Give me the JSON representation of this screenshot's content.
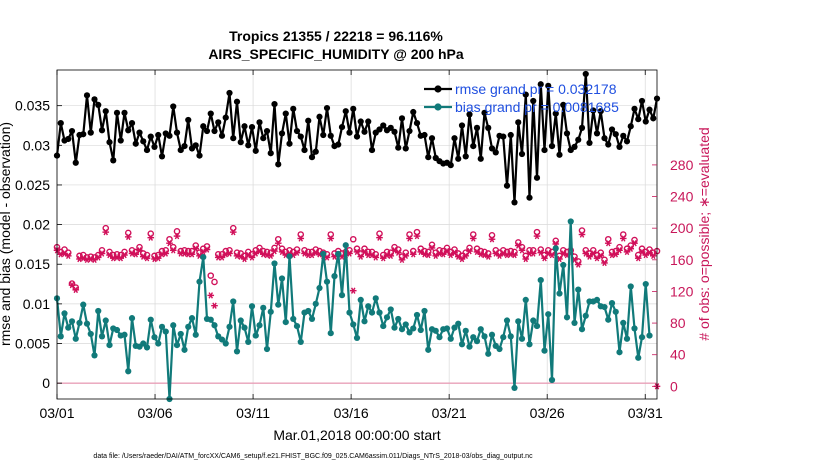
{
  "chart_data": {
    "type": "line",
    "title_line1": "Tropics 21355 / 22218 = 96.116%",
    "title_line2": "AIRS_SPECIFIC_HUMIDITY @ 200 hPa",
    "xlabel": "Mar.01,2018 00:00:00 start",
    "ylabel_left": "rmse and bias (model - observation)",
    "ylabel_right": "# of obs: o=possible; ∗=evaluated",
    "footer": "data file: /Users/raeder/DAI/ATM_forcXX/CAM6_setup/f.e21.FHIST_BGC.f09_025.CAM6assim.011/Diags_NTrS_2018-03/obs_diag_output.nc",
    "x_ticks": [
      {
        "label": "03/01",
        "day": 1
      },
      {
        "label": "03/06",
        "day": 6
      },
      {
        "label": "03/11",
        "day": 11
      },
      {
        "label": "03/16",
        "day": 16
      },
      {
        "label": "03/21",
        "day": 21
      },
      {
        "label": "03/26",
        "day": 26
      },
      {
        "label": "03/31",
        "day": 31
      }
    ],
    "xlim": [
      1,
      31.6
    ],
    "ylim_left": [
      -0.002,
      0.0395
    ],
    "ylim_right": [
      -16,
      400
    ],
    "y_ticks_left": [
      "0",
      "0.005",
      "0.01",
      "0.015",
      "0.02",
      "0.025",
      "0.03",
      "0.035"
    ],
    "y_ticks_left_values": [
      0,
      0.005,
      0.01,
      0.015,
      0.02,
      0.025,
      0.03,
      0.035
    ],
    "y_ticks_right": [
      "0",
      "40",
      "80",
      "120",
      "160",
      "200",
      "240",
      "280"
    ],
    "y_ticks_right_values": [
      0,
      40,
      80,
      120,
      160,
      200,
      240,
      280
    ],
    "legend": [
      {
        "name": "rmse",
        "label": "rmse grand pr = 0.032178"
      },
      {
        "name": "bias",
        "label": "bias grand pr = 0.0081685"
      }
    ],
    "colors": {
      "rmse": "#000000",
      "bias": "#117a7a",
      "obs": "#d1105a",
      "zero_line": "#e8a0b8",
      "grid": "#d9d9d9"
    },
    "series": [
      {
        "name": "rmse",
        "values": [
          0.0287,
          0.0328,
          0.0306,
          0.0308,
          0.0318,
          0.0278,
          0.0313,
          0.0314,
          0.0363,
          0.0316,
          0.0358,
          0.0351,
          0.0319,
          0.0343,
          0.0304,
          0.0281,
          0.0341,
          0.0306,
          0.0341,
          0.0319,
          0.0328,
          0.0302,
          0.0316,
          0.0305,
          0.0294,
          0.0311,
          0.0298,
          0.0313,
          0.0286,
          0.0315,
          0.0312,
          0.0349,
          0.0316,
          0.0294,
          0.0299,
          0.0332,
          0.0296,
          0.03,
          0.0287,
          0.0324,
          0.0318,
          0.034,
          0.0318,
          0.0329,
          0.0312,
          0.0335,
          0.0366,
          0.0309,
          0.0355,
          0.0304,
          0.0324,
          0.03,
          0.0323,
          0.0293,
          0.0329,
          0.0309,
          0.0318,
          0.029,
          0.0352,
          0.0276,
          0.0315,
          0.034,
          0.0302,
          0.0346,
          0.0318,
          0.0311,
          0.0294,
          0.0331,
          0.0285,
          0.0292,
          0.0336,
          0.0313,
          0.0347,
          0.0312,
          0.0299,
          0.0301,
          0.0323,
          0.0343,
          0.0316,
          0.0346,
          0.0311,
          0.033,
          0.0317,
          0.033,
          0.0294,
          0.0316,
          0.032,
          0.0325,
          0.0319,
          0.0322,
          0.0317,
          0.0297,
          0.0334,
          0.0296,
          0.0318,
          0.0342,
          0.0328,
          0.0312,
          0.0313,
          0.0285,
          0.0309,
          0.0284,
          0.028,
          0.0277,
          0.0278,
          0.0275,
          0.0309,
          0.0283,
          0.0325,
          0.0286,
          0.0339,
          0.0299,
          0.0322,
          0.0283,
          0.0341,
          0.0322,
          0.0296,
          0.0291,
          0.0312,
          0.0311,
          0.0249,
          0.0313,
          0.0228,
          0.0329,
          0.0289,
          0.0364,
          0.0234,
          0.0356,
          0.0259,
          0.0377,
          0.0294,
          0.0375,
          0.0299,
          0.034,
          0.0288,
          0.0351,
          0.0315,
          0.0294,
          0.0298,
          0.0307,
          0.0322,
          0.039,
          0.0303,
          0.0344,
          0.0315,
          0.0343,
          0.0309,
          0.0301,
          0.032,
          0.0314,
          0.0298,
          0.0312,
          0.0305,
          0.0324,
          0.0346,
          0.0333,
          0.0356,
          0.033,
          0.0345,
          0.0334,
          0.0359
        ]
      },
      {
        "name": "bias",
        "values": [
          0.0107,
          0.0059,
          0.0088,
          0.007,
          0.0078,
          0.0056,
          0.0076,
          0.0099,
          0.0075,
          0.0062,
          0.0035,
          0.0091,
          0.0059,
          0.0079,
          0.0048,
          0.0069,
          0.0067,
          0.006,
          0.0061,
          0.0015,
          0.0082,
          0.0047,
          0.0046,
          0.005,
          0.0045,
          0.008,
          0.0058,
          0.005,
          0.0071,
          0.0065,
          -0.002,
          0.0073,
          0.0048,
          0.0062,
          0.0042,
          0.0071,
          0.0082,
          0.0061,
          0.0128,
          0.0159,
          0.0081,
          0.008,
          0.0073,
          0.0059,
          0.0055,
          0.005,
          0.0071,
          0.0103,
          0.004,
          0.0079,
          0.007,
          0.0052,
          0.0097,
          0.006,
          0.0073,
          0.0095,
          0.0043,
          0.009,
          0.0151,
          0.0099,
          0.0132,
          0.0077,
          0.016,
          0.0081,
          0.0072,
          0.0052,
          0.0089,
          0.0091,
          0.0081,
          0.01,
          0.012,
          0.0163,
          0.0128,
          0.0063,
          0.0135,
          0.0163,
          0.0111,
          0.0174,
          0.0089,
          0.0074,
          0.0057,
          0.0105,
          0.0078,
          0.0097,
          0.0089,
          0.0107,
          0.0089,
          0.0072,
          0.0083,
          0.0093,
          0.007,
          0.0081,
          0.0068,
          0.0074,
          0.0064,
          0.0069,
          0.0086,
          0.0067,
          0.0091,
          0.0042,
          0.0068,
          0.0066,
          0.0058,
          0.0068,
          0.0069,
          0.0056,
          0.007,
          0.0075,
          0.0049,
          0.0066,
          0.0046,
          0.0058,
          0.0053,
          0.0068,
          0.0059,
          0.0037,
          0.0061,
          0.0047,
          0.0043,
          0.0058,
          0.0079,
          0.0059,
          -0.0006,
          0.0078,
          0.0056,
          0.0105,
          0.0049,
          0.0079,
          0.0072,
          0.013,
          0.0041,
          0.0087,
          0.0004,
          0.017,
          0.0113,
          0.0149,
          0.0083,
          0.0204,
          0.0076,
          0.0118,
          0.0068,
          0.0085,
          0.0103,
          0.0103,
          0.0105,
          0.0097,
          0.0096,
          0.008,
          0.0101,
          0.009,
          0.0039,
          0.0076,
          0.0056,
          0.0122,
          0.0069,
          0.0032,
          0.0058,
          0.0125,
          0.006
        ]
      },
      {
        "name": "obs_possible",
        "values": [
          176,
          170,
          173,
          169,
          130,
          125,
          165,
          166,
          163,
          164,
          163,
          166,
          172,
          200,
          170,
          166,
          167,
          166,
          170,
          194,
          172,
          170,
          176,
          168,
          166,
          193,
          165,
          166,
          171,
          172,
          186,
          176,
          196,
          171,
          172,
          171,
          171,
          178,
          169,
          174,
          177,
          140,
          132,
          167,
          167,
          171,
          172,
          200,
          169,
          168,
          165,
          170,
          167,
          172,
          175,
          171,
          170,
          169,
          175,
          186,
          174,
          170,
          172,
          170,
          173,
          192,
          172,
          170,
          170,
          173,
          171,
          169,
          167,
          192,
          168,
          171,
          168,
          170,
          172,
          186,
          174,
          168,
          174,
          170,
          170,
          167,
          193,
          166,
          170,
          169,
          176,
          173,
          164,
          169,
          192,
          171,
          195,
          174,
          171,
          170,
          179,
          169,
          172,
          171,
          175,
          170,
          173,
          168,
          165,
          169,
          175,
          192,
          174,
          171,
          170,
          168,
          191,
          172,
          169,
          172,
          170,
          171,
          170,
          182,
          176,
          165,
          172,
          172,
          195,
          173,
          166,
          172,
          170,
          184,
          165,
          172,
          170,
          172,
          164,
          158,
          197,
          172,
          168,
          172,
          166,
          169,
          160,
          186,
          170,
          171,
          176,
          192,
          174,
          178,
          185,
          166,
          174,
          170,
          173,
          169,
          171
        ]
      },
      {
        "name": "obs_evaluated",
        "values": [
          172,
          167,
          168,
          165,
          128,
          122,
          161,
          162,
          160,
          161,
          160,
          163,
          168,
          195,
          166,
          162,
          163,
          162,
          166,
          189,
          168,
          167,
          172,
          164,
          162,
          188,
          161,
          162,
          167,
          168,
          181,
          172,
          190,
          168,
          168,
          167,
          167,
          174,
          165,
          170,
          173,
          115,
          102,
          163,
          163,
          167,
          168,
          195,
          165,
          164,
          161,
          166,
          163,
          168,
          171,
          167,
          166,
          165,
          171,
          181,
          170,
          166,
          168,
          166,
          169,
          187,
          168,
          166,
          166,
          169,
          167,
          165,
          163,
          187,
          164,
          167,
          164,
          166,
          168,
          121,
          170,
          164,
          170,
          166,
          166,
          163,
          188,
          162,
          166,
          165,
          172,
          169,
          160,
          165,
          187,
          167,
          190,
          170,
          167,
          166,
          175,
          165,
          168,
          167,
          171,
          166,
          169,
          164,
          161,
          165,
          171,
          187,
          170,
          167,
          166,
          164,
          186,
          168,
          165,
          168,
          166,
          167,
          166,
          178,
          172,
          161,
          168,
          168,
          190,
          169,
          162,
          168,
          166,
          180,
          161,
          168,
          166,
          168,
          160,
          154,
          192,
          168,
          164,
          168,
          162,
          165,
          156,
          181,
          166,
          167,
          172,
          187,
          170,
          174,
          181,
          162,
          170,
          166,
          169,
          165,
          0
        ]
      }
    ]
  }
}
